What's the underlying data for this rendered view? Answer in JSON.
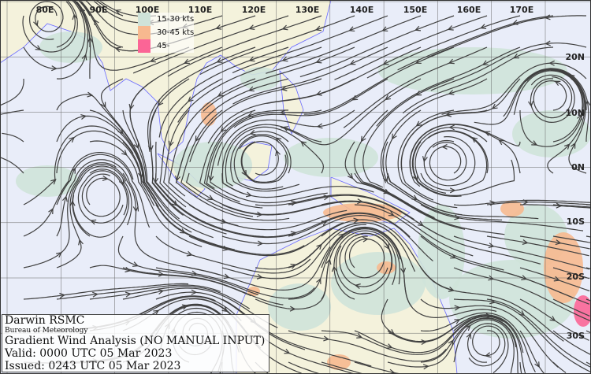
{
  "map": {
    "longitude_labels": [
      "80E",
      "90E",
      "100E",
      "110E",
      "120E",
      "130E",
      "140E",
      "150E",
      "160E",
      "170E"
    ],
    "latitude_labels": [
      "20N",
      "10N",
      "0N",
      "10S",
      "20S",
      "30S"
    ],
    "colors": {
      "ocean": "#e9edf9",
      "land": "#f4f2dc",
      "coast": "#6a6aff",
      "streamline": "#404040",
      "grid": "#555555"
    }
  },
  "legend": {
    "items": [
      {
        "label": "15-30 kts",
        "color": "#cfe3d9"
      },
      {
        "label": "30-45 kts",
        "color": "#f7b98f"
      },
      {
        "label": "45-",
        "color": "#fb6596"
      }
    ]
  },
  "info": {
    "office": "Darwin RSMC",
    "agency": "Bureau of Meteorology",
    "title": "Gradient Wind Analysis (NO MANUAL INPUT)",
    "valid": "Valid:   0000 UTC 05 Mar 2023",
    "issued": "Issued: 0243 UTC 05 Mar 2023"
  }
}
